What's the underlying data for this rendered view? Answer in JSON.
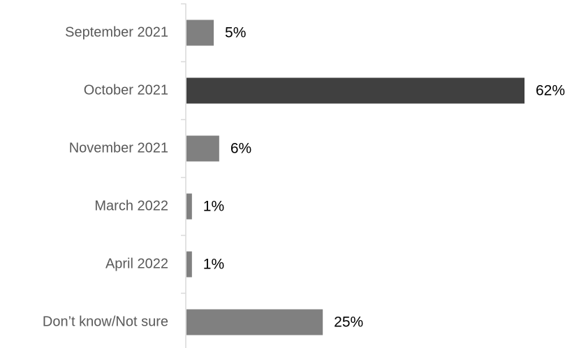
{
  "chart_data": {
    "type": "bar",
    "orientation": "horizontal",
    "categories": [
      "September 2021",
      "October 2021",
      "November 2021",
      "March 2022",
      "April 2022",
      "Don’t know/Not sure"
    ],
    "values": [
      5,
      62,
      6,
      1,
      1,
      25
    ],
    "value_labels": [
      "5%",
      "62%",
      "6%",
      "1%",
      "1%",
      "25%"
    ],
    "unit": "%",
    "title": "",
    "xlabel": "",
    "ylabel": "",
    "xlim": [
      0,
      62
    ],
    "grid": false,
    "legend": "none",
    "colors": {
      "default": "#808080",
      "highlight": "#404040",
      "highlight_index": 1,
      "axis": "#d9d9d9"
    }
  }
}
